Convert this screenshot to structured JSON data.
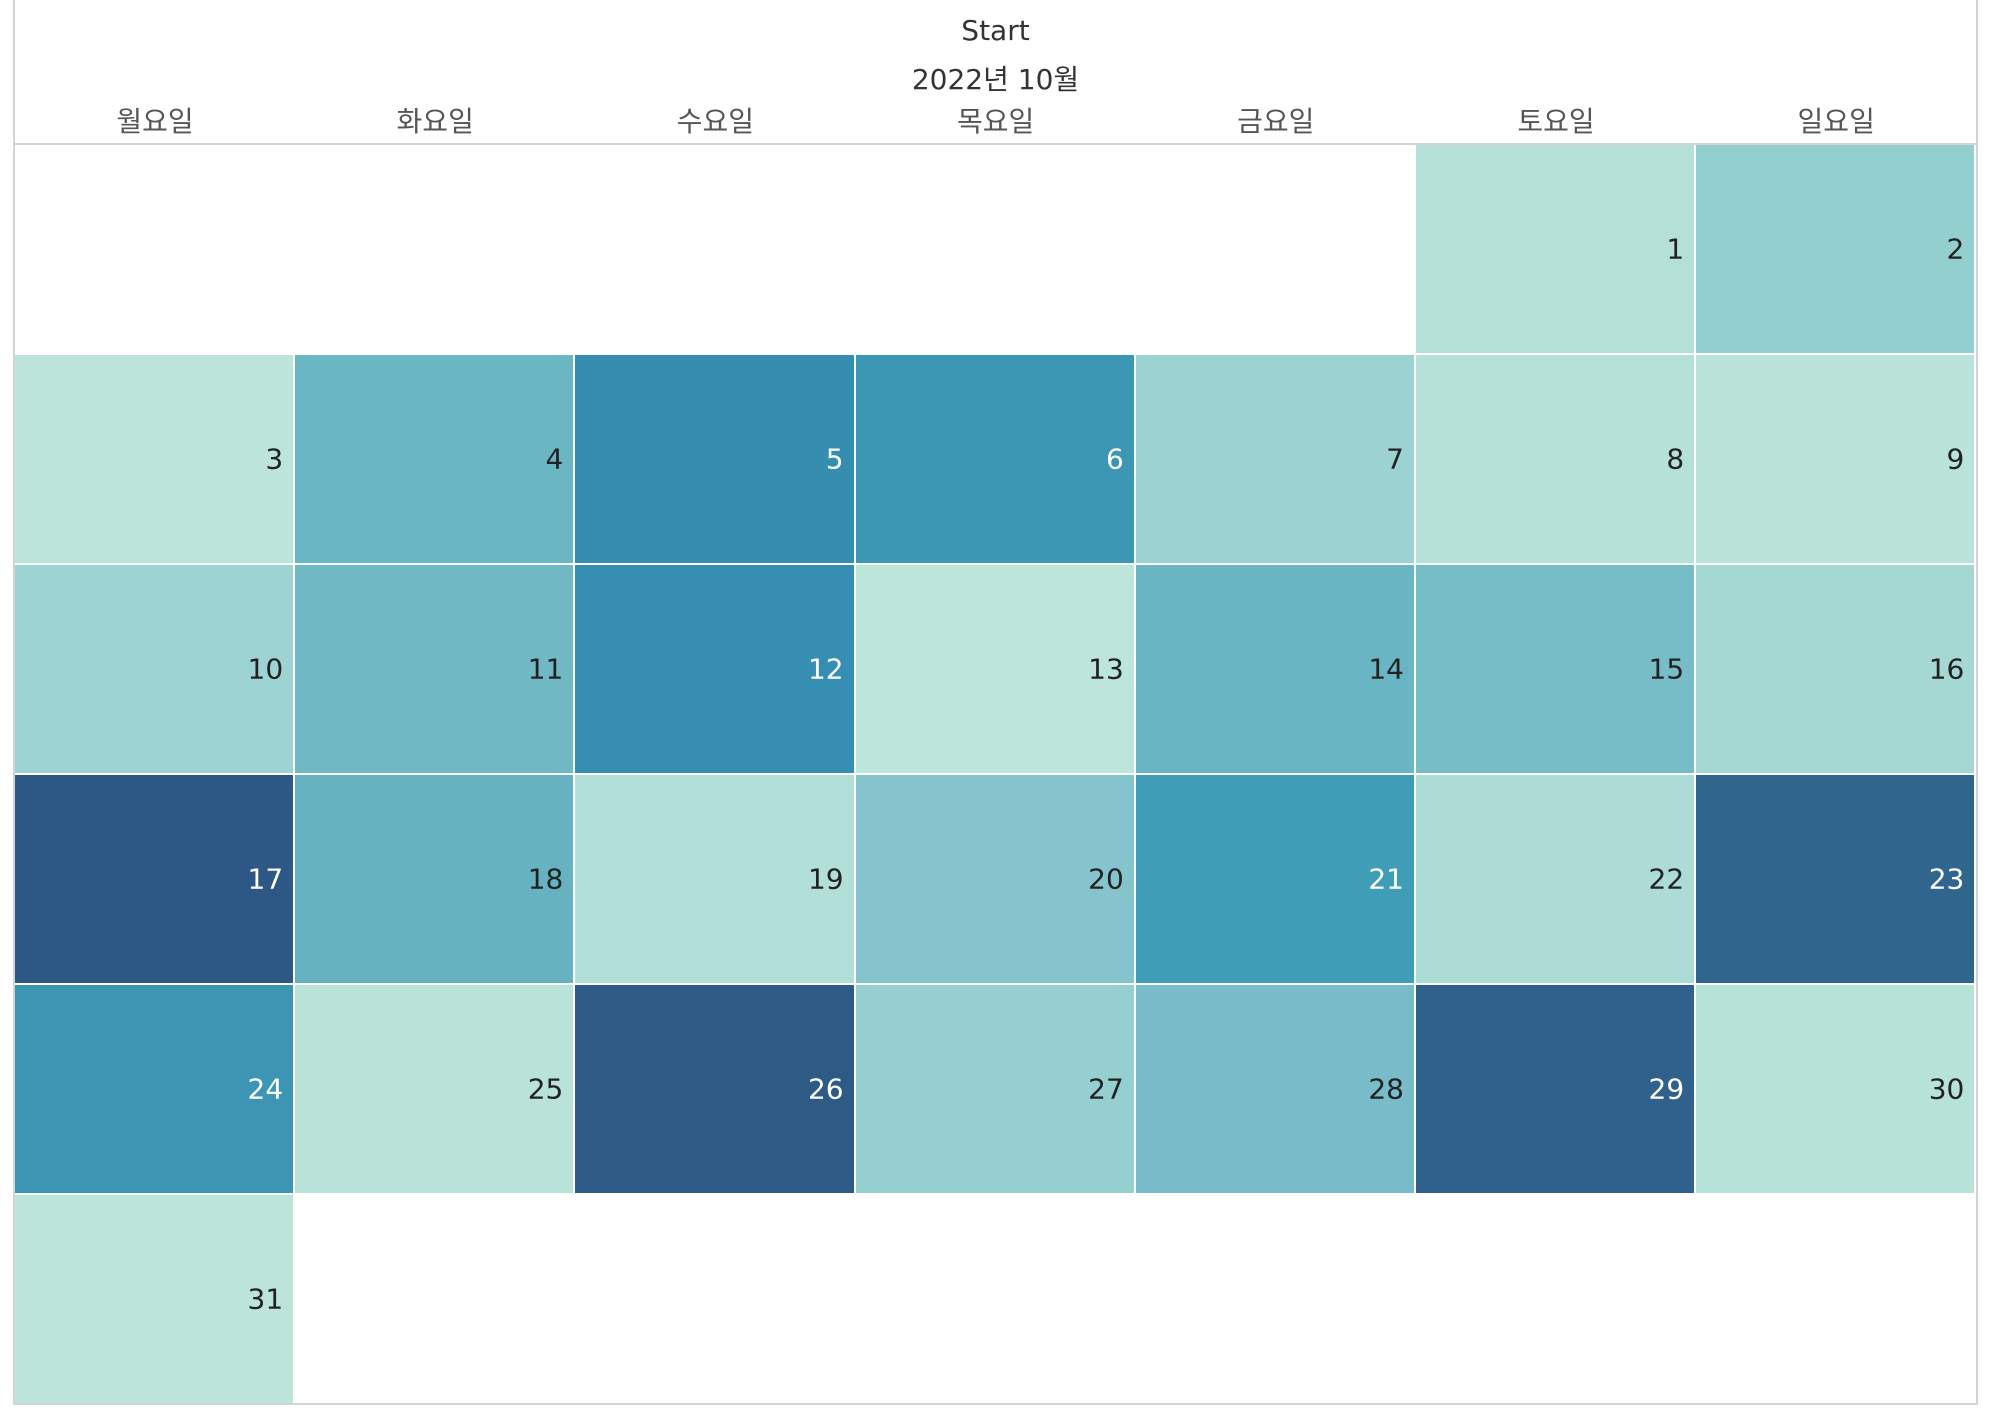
{
  "header": {
    "title": "Start",
    "month": "2022년 10월"
  },
  "weekdays": [
    "월요일",
    "화요일",
    "수요일",
    "목요일",
    "금요일",
    "토요일",
    "일요일"
  ],
  "chart_data": {
    "type": "heatmap",
    "title": "Start",
    "subtitle": "2022년 10월",
    "columns": [
      "월요일",
      "화요일",
      "수요일",
      "목요일",
      "금요일",
      "토요일",
      "일요일"
    ],
    "first_weekday_index": 5,
    "days": [
      {
        "day": 1,
        "color": "#b4e0d7",
        "text_color": "#222222"
      },
      {
        "day": 2,
        "color": "#94cfd0",
        "text_color": "#222222"
      },
      {
        "day": 3,
        "color": "#bce4da",
        "text_color": "#222222"
      },
      {
        "day": 4,
        "color": "#6ab7c3",
        "text_color": "#222222"
      },
      {
        "day": 5,
        "color": "#358daf",
        "text_color": "#ffffff"
      },
      {
        "day": 6,
        "color": "#3c97b4",
        "text_color": "#ffffff"
      },
      {
        "day": 7,
        "color": "#9dd2d2",
        "text_color": "#222222"
      },
      {
        "day": 8,
        "color": "#b6e1d8",
        "text_color": "#222222"
      },
      {
        "day": 9,
        "color": "#bae3d9",
        "text_color": "#222222"
      },
      {
        "day": 10,
        "color": "#9ed3d3",
        "text_color": "#222222"
      },
      {
        "day": 11,
        "color": "#70b9c4",
        "text_color": "#222222"
      },
      {
        "day": 12,
        "color": "#368fb2",
        "text_color": "#ffffff"
      },
      {
        "day": 13,
        "color": "#bde5da",
        "text_color": "#222222"
      },
      {
        "day": 14,
        "color": "#69b5c3",
        "text_color": "#222222"
      },
      {
        "day": 15,
        "color": "#76bdc8",
        "text_color": "#222222"
      },
      {
        "day": 16,
        "color": "#a5d8d3",
        "text_color": "#222222"
      },
      {
        "day": 17,
        "color": "#2d5784",
        "text_color": "#ffffff"
      },
      {
        "day": 18,
        "color": "#66b2c1",
        "text_color": "#222222"
      },
      {
        "day": 19,
        "color": "#b2dfd8",
        "text_color": "#222222"
      },
      {
        "day": 20,
        "color": "#85c4cc",
        "text_color": "#222222"
      },
      {
        "day": 21,
        "color": "#409db7",
        "text_color": "#ffffff"
      },
      {
        "day": 22,
        "color": "#acdcd5",
        "text_color": "#222222"
      },
      {
        "day": 23,
        "color": "#30658e",
        "text_color": "#ffffff"
      },
      {
        "day": 24,
        "color": "#3c95b3",
        "text_color": "#ffffff"
      },
      {
        "day": 25,
        "color": "#b9e3d9",
        "text_color": "#222222"
      },
      {
        "day": 26,
        "color": "#2e5a86",
        "text_color": "#ffffff"
      },
      {
        "day": 27,
        "color": "#95cfd0",
        "text_color": "#222222"
      },
      {
        "day": 28,
        "color": "#77bcc8",
        "text_color": "#222222"
      },
      {
        "day": 29,
        "color": "#2f618c",
        "text_color": "#ffffff"
      },
      {
        "day": 30,
        "color": "#b7e2d8",
        "text_color": "#222222"
      },
      {
        "day": 31,
        "color": "#bce4da",
        "text_color": "#222222"
      }
    ]
  }
}
